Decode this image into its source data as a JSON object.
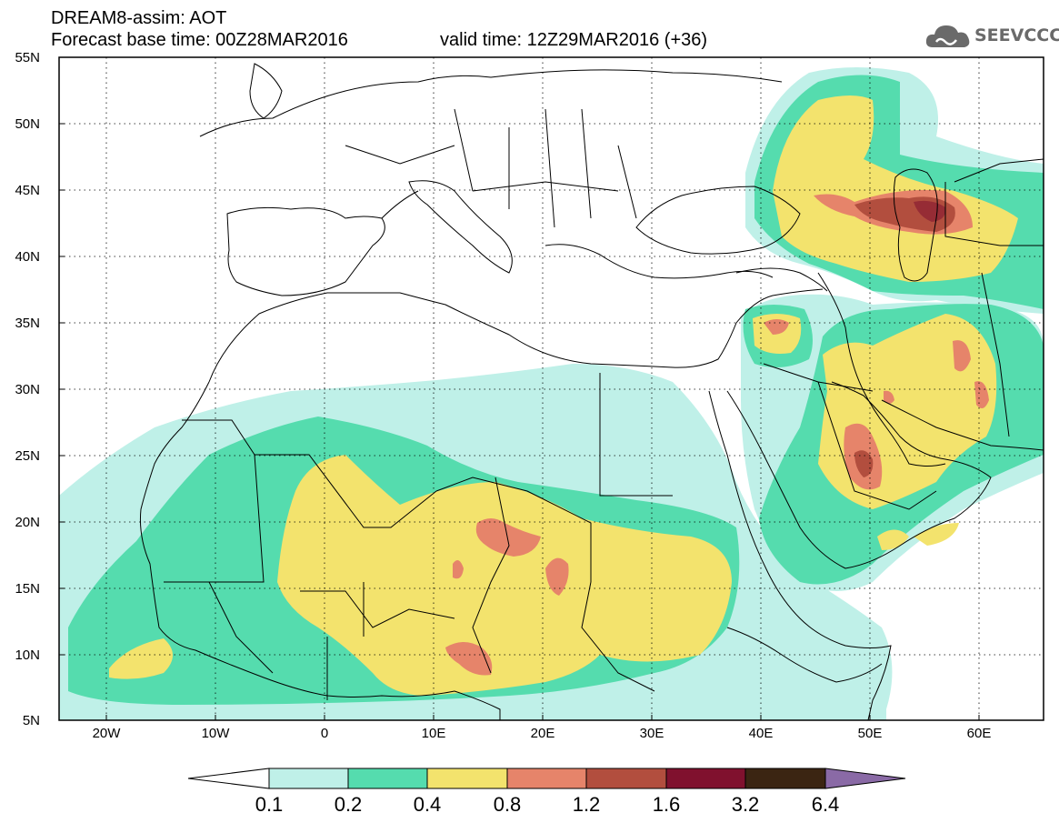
{
  "header": {
    "line1": "DREAM8-assim: AOT",
    "base_time_text": "Forecast base time: 00Z28MAR2016",
    "valid_time_text": "valid time: 12Z29MAR2016 (+36)"
  },
  "logo": {
    "text": "SEEVCCC",
    "icon": "cloud-icon"
  },
  "map": {
    "lon_range": [
      -25,
      65
    ],
    "lat_range": [
      5,
      55
    ],
    "lat_ticks": [
      "55N",
      "50N",
      "45N",
      "40N",
      "35N",
      "30N",
      "25N",
      "20N",
      "15N",
      "10N",
      "5N"
    ],
    "lon_ticks": [
      "20W",
      "10W",
      "0",
      "10E",
      "20E",
      "30E",
      "40E",
      "50E",
      "60E"
    ]
  },
  "colorbar": {
    "levels": [
      "0.1",
      "0.2",
      "0.4",
      "0.8",
      "1.2",
      "1.6",
      "3.2",
      "6.4"
    ],
    "colors": [
      "#bff0e8",
      "#55dcae",
      "#f3e36d",
      "#e6846a",
      "#b24e3e",
      "#80112e",
      "#3b2512",
      "#8a6aa6"
    ]
  }
}
